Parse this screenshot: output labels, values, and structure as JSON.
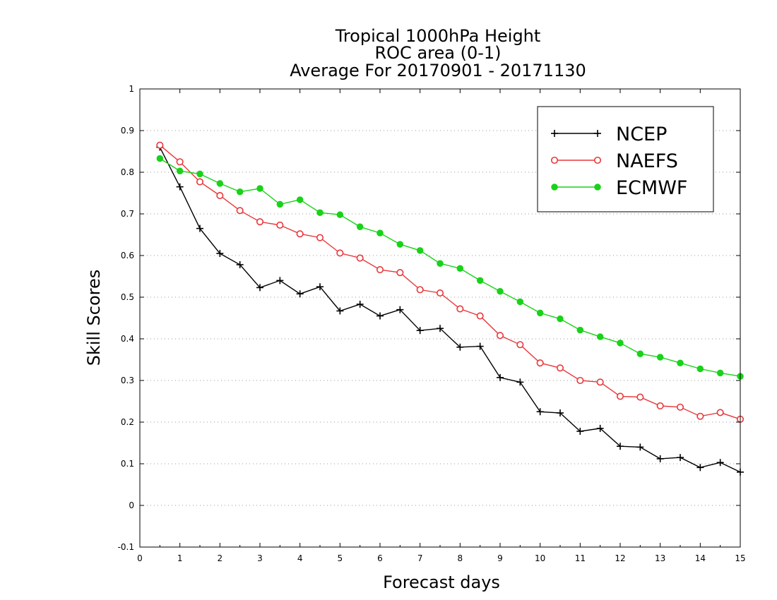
{
  "chart_data": {
    "type": "line",
    "title": [
      "Tropical 1000hPa Height",
      "ROC area (0-1)",
      "Average For 20170901 - 20171130"
    ],
    "xlabel": "Forecast days",
    "ylabel": "Skill Scores",
    "xlim": [
      0,
      15
    ],
    "ylim": [
      -0.1,
      1
    ],
    "x_ticks": [
      0,
      1,
      2,
      3,
      4,
      5,
      6,
      7,
      8,
      9,
      10,
      11,
      12,
      13,
      14,
      15
    ],
    "y_ticks": [
      -0.1,
      0,
      0.1,
      0.2,
      0.3,
      0.4,
      0.5,
      0.6,
      0.7,
      0.8,
      0.9,
      1
    ],
    "y_tick_labels": [
      "-0.1",
      "0",
      "0.1",
      "0.2",
      "0.3",
      "0.4",
      "0.5",
      "0.6",
      "0.7",
      "0.8",
      "0.9",
      "1"
    ],
    "grid": "horizontal dotted",
    "legend_position": "top-right",
    "x": [
      0.5,
      1,
      1.5,
      2,
      2.5,
      3,
      3.5,
      4,
      4.5,
      5,
      5.5,
      6,
      6.5,
      7,
      7.5,
      8,
      8.5,
      9,
      9.5,
      10,
      10.5,
      11,
      11.5,
      12,
      12.5,
      13,
      13.5,
      14,
      14.5,
      15
    ],
    "series": [
      {
        "name": "NCEP",
        "color": "#000000",
        "marker": "plus",
        "values": [
          0.86,
          0.765,
          0.665,
          0.605,
          0.578,
          0.523,
          0.54,
          0.508,
          0.525,
          0.467,
          0.483,
          0.455,
          0.47,
          0.42,
          0.425,
          0.38,
          0.382,
          0.307,
          0.296,
          0.225,
          0.222,
          0.178,
          0.185,
          0.142,
          0.14,
          0.112,
          0.115,
          0.091,
          0.103,
          0.08
        ]
      },
      {
        "name": "NAEFS",
        "color": "#e8383b",
        "marker": "open-circle",
        "values": [
          0.865,
          0.825,
          0.777,
          0.744,
          0.708,
          0.681,
          0.673,
          0.652,
          0.643,
          0.606,
          0.594,
          0.566,
          0.559,
          0.518,
          0.51,
          0.472,
          0.455,
          0.408,
          0.386,
          0.342,
          0.33,
          0.3,
          0.296,
          0.262,
          0.26,
          0.239,
          0.236,
          0.214,
          0.223,
          0.207
        ]
      },
      {
        "name": "ECMWF",
        "color": "#19d219",
        "marker": "filled-circle",
        "values": [
          0.833,
          0.803,
          0.796,
          0.773,
          0.753,
          0.761,
          0.723,
          0.734,
          0.703,
          0.698,
          0.669,
          0.654,
          0.627,
          0.612,
          0.581,
          0.569,
          0.54,
          0.514,
          0.489,
          0.462,
          0.448,
          0.421,
          0.405,
          0.39,
          0.364,
          0.356,
          0.342,
          0.328,
          0.318,
          0.31
        ]
      }
    ]
  }
}
